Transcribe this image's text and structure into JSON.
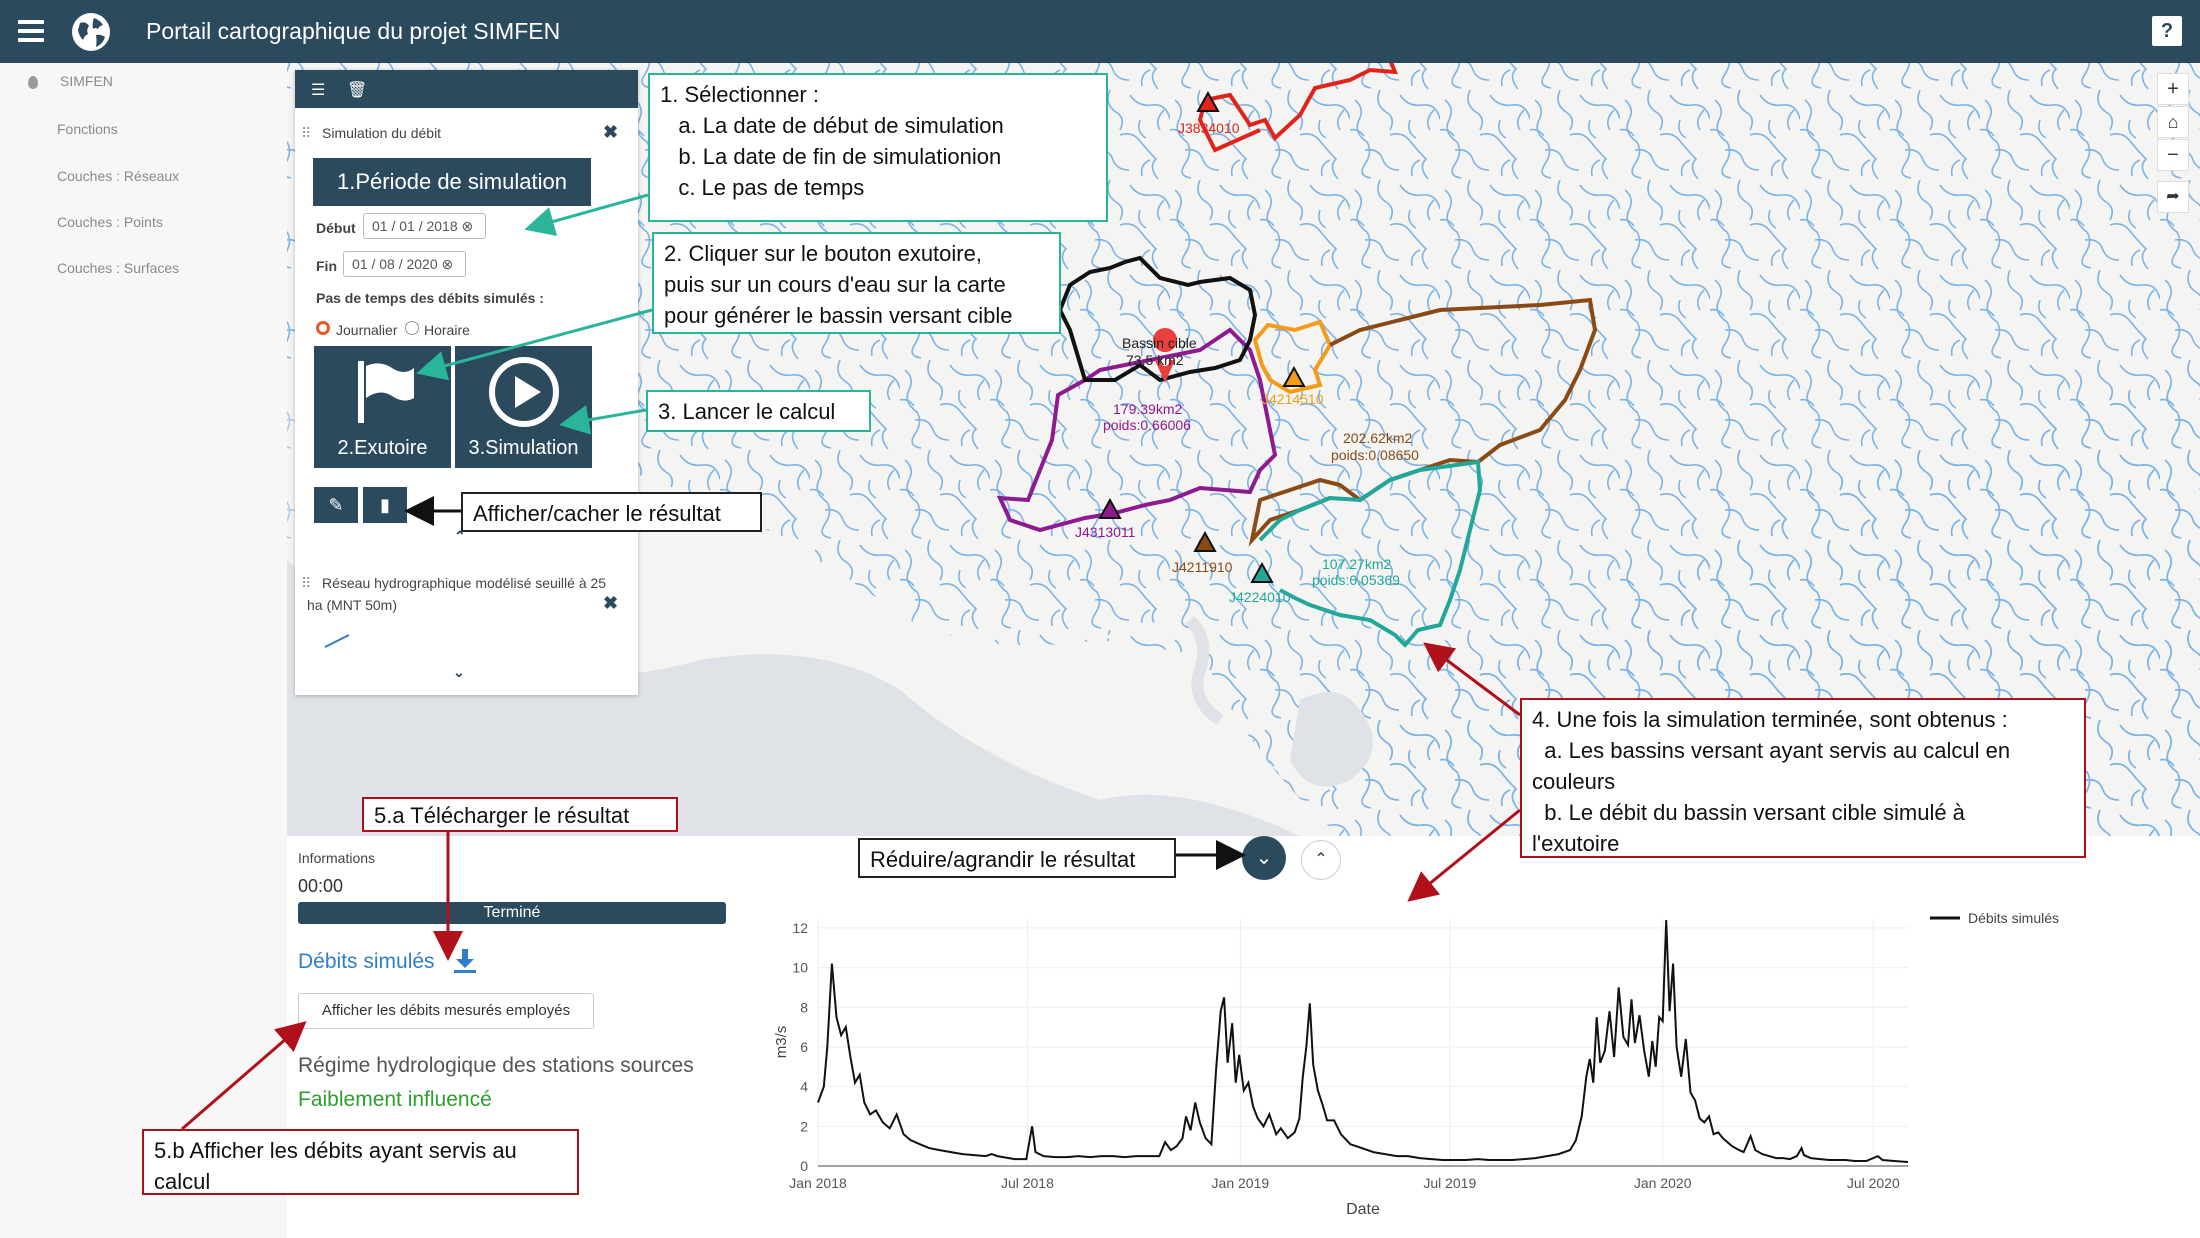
{
  "header": {
    "title": "Portail cartographique du projet SIMFEN",
    "help_label": "?"
  },
  "sidebar": {
    "head": "SIMFEN",
    "items": [
      "Fonctions",
      "Couches : Réseaux",
      "Couches : Points",
      "Couches : Surfaces"
    ]
  },
  "panel": {
    "section_title": "Simulation du débit",
    "period_button": "1.Période de simulation",
    "start_label": "Début",
    "start_value": "01 / 01 / 2018",
    "end_label": "Fin",
    "end_value": "01 / 08 / 2020",
    "timestep_label": "Pas de temps des débits simulés :",
    "radio_daily": "Journalier",
    "radio_hourly": "Horaire",
    "outlet_button": "2.Exutoire",
    "simulation_button": "3.Simulation",
    "layer_title_line1": "Réseau hydrographique modélisé seuillé à 25",
    "layer_title_line2": "ha (MNT 50m)"
  },
  "map": {
    "stations": [
      {
        "id": "J3834010",
        "color": "#e0241b"
      },
      {
        "id": "J4214510",
        "color": "#f49b1a"
      },
      {
        "id": "J4313011",
        "color": "#8e1a8f"
      },
      {
        "id": "J4211910",
        "color": "#8a4a16"
      },
      {
        "id": "J4224010",
        "color": "#22a89a"
      }
    ],
    "target_label": "Bassin cible",
    "target_area": "73.5 km2",
    "labels": [
      {
        "text1": "179.39km2",
        "text2": "poids:0.66006",
        "color": "#8e1a8f"
      },
      {
        "text1": "202.62km2",
        "text2": "poids:0.08650",
        "color": "#8a4a16"
      },
      {
        "text1": "107.27km2",
        "text2": "poids:0.05369",
        "color": "#22a89a"
      }
    ],
    "zoom_in": "+",
    "zoom_out": "−",
    "home": "⌂",
    "share": "➦"
  },
  "results": {
    "info_label": "Informations",
    "time": "00:00",
    "status": "Terminé",
    "download_link": "Débits simulés",
    "show_measured_button": "Afficher les débits mesurés employés",
    "regime_label": "Régime hydrologique des stations sources",
    "regime_value": "Faiblement influencé"
  },
  "callouts": {
    "c1": [
      "1. Sélectionner :",
      "   a. La date de début de simulation",
      "   b. La date de fin de simulationion",
      "   c. Le pas de temps"
    ],
    "c2": [
      "2. Cliquer sur le bouton exutoire,",
      "puis sur un cours d'eau sur la carte",
      "pour générer le bassin versant cible"
    ],
    "c3": [
      "3. Lancer le calcul"
    ],
    "c_toggle": [
      "Afficher/cacher le résultat"
    ],
    "c4": [
      "4. Une fois la simulation terminée, sont obtenus :",
      "  a. Les bassins versant ayant servis au calcul en",
      "couleurs",
      "  b. Le débit du bassin versant cible simulé à",
      "l'exutoire"
    ],
    "c5a": [
      "5.a Télécharger le résultat"
    ],
    "c5b": [
      "5.b Afficher les débits ayant servis au",
      "calcul"
    ],
    "c_reduce": [
      "Réduire/agrandir le résultat"
    ]
  },
  "chart_data": {
    "type": "line",
    "ylabel": "m3/s",
    "xlabel": "Date",
    "ylim": [
      0,
      12.5
    ],
    "yticks": [
      0,
      2,
      4,
      6,
      8,
      10,
      12
    ],
    "xticks": [
      "Jan 2018",
      "Jul 2018",
      "Jan 2019",
      "Jul 2019",
      "Jan 2020",
      "Jul 2020"
    ],
    "xtick_days": [
      0,
      181,
      365,
      546,
      730,
      912
    ],
    "x_max_days": 942,
    "series": [
      {
        "name": "Débits simulés",
        "color": "#111111",
        "points": [
          [
            0,
            3.2
          ],
          [
            5,
            4
          ],
          [
            8,
            6
          ],
          [
            12,
            10.2
          ],
          [
            16,
            7.5
          ],
          [
            20,
            6.6
          ],
          [
            24,
            7
          ],
          [
            28,
            5.5
          ],
          [
            32,
            4.2
          ],
          [
            36,
            4.6
          ],
          [
            40,
            3.2
          ],
          [
            45,
            2.6
          ],
          [
            50,
            2.8
          ],
          [
            56,
            2.2
          ],
          [
            62,
            1.9
          ],
          [
            68,
            2.6
          ],
          [
            74,
            1.6
          ],
          [
            80,
            1.3
          ],
          [
            88,
            1.1
          ],
          [
            96,
            0.9
          ],
          [
            105,
            0.8
          ],
          [
            115,
            0.7
          ],
          [
            125,
            0.6
          ],
          [
            135,
            0.55
          ],
          [
            145,
            0.5
          ],
          [
            150,
            0.6
          ],
          [
            155,
            0.5
          ],
          [
            160,
            0.45
          ],
          [
            165,
            0.4
          ],
          [
            170,
            0.35
          ],
          [
            180,
            0.35
          ],
          [
            185,
            2
          ],
          [
            188,
            0.7
          ],
          [
            195,
            0.5
          ],
          [
            205,
            0.45
          ],
          [
            215,
            0.45
          ],
          [
            225,
            0.5
          ],
          [
            235,
            0.45
          ],
          [
            245,
            0.5
          ],
          [
            255,
            0.5
          ],
          [
            265,
            0.45
          ],
          [
            275,
            0.5
          ],
          [
            285,
            0.5
          ],
          [
            295,
            0.5
          ],
          [
            300,
            1.2
          ],
          [
            305,
            0.8
          ],
          [
            310,
            1
          ],
          [
            315,
            1.4
          ],
          [
            318,
            2.5
          ],
          [
            322,
            1.8
          ],
          [
            326,
            3.2
          ],
          [
            330,
            2.2
          ],
          [
            335,
            1.4
          ],
          [
            340,
            1.1
          ],
          [
            344,
            4.8
          ],
          [
            348,
            7.8
          ],
          [
            351,
            8.5
          ],
          [
            354,
            5.2
          ],
          [
            358,
            7.2
          ],
          [
            361,
            4.2
          ],
          [
            364,
            5.6
          ],
          [
            368,
            3.8
          ],
          [
            372,
            4.2
          ],
          [
            376,
            3
          ],
          [
            380,
            2.4
          ],
          [
            385,
            2
          ],
          [
            390,
            2.6
          ],
          [
            396,
            1.6
          ],
          [
            400,
            1.9
          ],
          [
            406,
            1.4
          ],
          [
            412,
            1.7
          ],
          [
            416,
            2.4
          ],
          [
            419,
            4.5
          ],
          [
            422,
            6
          ],
          [
            425,
            8.2
          ],
          [
            428,
            5.1
          ],
          [
            432,
            3.8
          ],
          [
            436,
            3.1
          ],
          [
            440,
            2.3
          ],
          [
            446,
            2.3
          ],
          [
            452,
            1.6
          ],
          [
            460,
            1.1
          ],
          [
            470,
            0.9
          ],
          [
            480,
            0.7
          ],
          [
            490,
            0.6
          ],
          [
            500,
            0.5
          ],
          [
            510,
            0.5
          ],
          [
            520,
            0.4
          ],
          [
            530,
            0.35
          ],
          [
            540,
            0.3
          ],
          [
            550,
            0.3
          ],
          [
            560,
            0.3
          ],
          [
            570,
            0.35
          ],
          [
            580,
            0.3
          ],
          [
            590,
            0.3
          ],
          [
            600,
            0.3
          ],
          [
            610,
            0.35
          ],
          [
            620,
            0.4
          ],
          [
            630,
            0.5
          ],
          [
            640,
            0.6
          ],
          [
            650,
            0.8
          ],
          [
            655,
            1.3
          ],
          [
            660,
            2.5
          ],
          [
            664,
            4.5
          ],
          [
            667,
            5.4
          ],
          [
            670,
            4.2
          ],
          [
            673,
            7.5
          ],
          [
            676,
            5.2
          ],
          [
            680,
            5.8
          ],
          [
            684,
            7.8
          ],
          [
            688,
            5.5
          ],
          [
            692,
            9
          ],
          [
            696,
            6.5
          ],
          [
            700,
            6.1
          ],
          [
            703,
            8.4
          ],
          [
            706,
            6.2
          ],
          [
            710,
            7.6
          ],
          [
            714,
            5.8
          ],
          [
            718,
            4.5
          ],
          [
            721,
            6.3
          ],
          [
            724,
            5
          ],
          [
            727,
            7.5
          ],
          [
            730,
            7.3
          ],
          [
            733,
            12.4
          ],
          [
            736,
            7.8
          ],
          [
            739,
            10.2
          ],
          [
            742,
            6
          ],
          [
            746,
            4.5
          ],
          [
            750,
            6.4
          ],
          [
            754,
            3.7
          ],
          [
            758,
            3.3
          ],
          [
            762,
            2.4
          ],
          [
            766,
            2.2
          ],
          [
            770,
            2.5
          ],
          [
            774,
            1.6
          ],
          [
            778,
            1.7
          ],
          [
            782,
            1.4
          ],
          [
            786,
            1.2
          ],
          [
            790,
            1
          ],
          [
            796,
            0.8
          ],
          [
            800,
            0.7
          ],
          [
            806,
            1.5
          ],
          [
            810,
            0.8
          ],
          [
            816,
            0.6
          ],
          [
            822,
            0.5
          ],
          [
            828,
            0.4
          ],
          [
            834,
            0.4
          ],
          [
            840,
            0.35
          ],
          [
            846,
            0.5
          ],
          [
            850,
            0.9
          ],
          [
            852,
            0.55
          ],
          [
            858,
            0.4
          ],
          [
            866,
            0.35
          ],
          [
            874,
            0.3
          ],
          [
            880,
            0.3
          ],
          [
            888,
            0.3
          ],
          [
            896,
            0.25
          ],
          [
            906,
            0.25
          ],
          [
            916,
            0.5
          ],
          [
            920,
            0.3
          ],
          [
            930,
            0.25
          ],
          [
            942,
            0.2
          ]
        ]
      }
    ]
  }
}
